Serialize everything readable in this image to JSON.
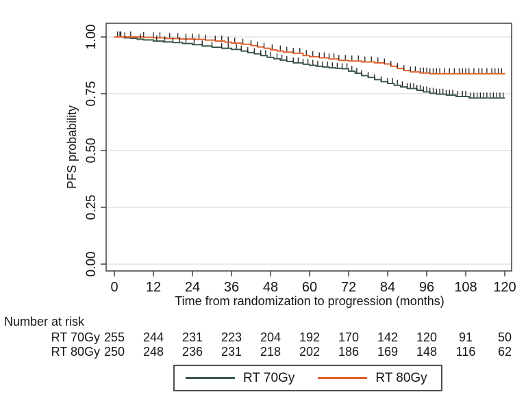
{
  "chart_data": {
    "type": "line",
    "chart_kind": "kaplan-meier-step",
    "title": "",
    "xlabel": "Time from randomization to progression (months)",
    "ylabel": "PFS probability",
    "xlim": [
      0,
      120
    ],
    "ylim": [
      0,
      1
    ],
    "xticks": [
      0,
      12,
      24,
      36,
      48,
      60,
      72,
      84,
      96,
      108,
      120
    ],
    "ytick_values": [
      1,
      0.75,
      0.5,
      0.25,
      0
    ],
    "ytick_labels": [
      "1.00",
      "0.75",
      "0.50",
      "0.25",
      "0.00"
    ],
    "grid": "horizontal",
    "legend_position": "bottom",
    "colors": {
      "rt70": "#3b5a49",
      "rt80": "#e2612c",
      "censor_tick": "#1e1e1e",
      "gridline": "#dcdcdc",
      "axis": "#3f3f3f",
      "text": "#161616"
    },
    "series": [
      {
        "name": "RT 70Gy",
        "color": "#3b5a49",
        "steps": [
          [
            0,
            1.0
          ],
          [
            3,
            0.996
          ],
          [
            5,
            0.994
          ],
          [
            7,
            0.99
          ],
          [
            9,
            0.987
          ],
          [
            12,
            0.982
          ],
          [
            15,
            0.978
          ],
          [
            18,
            0.975
          ],
          [
            21,
            0.971
          ],
          [
            24,
            0.966
          ],
          [
            27,
            0.96
          ],
          [
            30,
            0.955
          ],
          [
            33,
            0.95
          ],
          [
            36,
            0.945
          ],
          [
            39,
            0.938
          ],
          [
            41,
            0.931
          ],
          [
            43,
            0.926
          ],
          [
            45,
            0.918
          ],
          [
            47,
            0.91
          ],
          [
            49,
            0.904
          ],
          [
            51,
            0.898
          ],
          [
            53,
            0.892
          ],
          [
            55,
            0.886
          ],
          [
            58,
            0.88
          ],
          [
            60,
            0.875
          ],
          [
            62,
            0.871
          ],
          [
            64,
            0.868
          ],
          [
            66,
            0.864
          ],
          [
            68,
            0.862
          ],
          [
            70,
            0.86
          ],
          [
            72,
            0.849
          ],
          [
            74,
            0.84
          ],
          [
            76,
            0.83
          ],
          [
            78,
            0.822
          ],
          [
            80,
            0.812
          ],
          [
            82,
            0.803
          ],
          [
            84,
            0.795
          ],
          [
            86,
            0.787
          ],
          [
            88,
            0.78
          ],
          [
            90,
            0.773
          ],
          [
            93,
            0.765
          ],
          [
            95,
            0.758
          ],
          [
            97,
            0.752
          ],
          [
            99,
            0.748
          ],
          [
            102,
            0.744
          ],
          [
            105,
            0.738
          ],
          [
            109,
            0.731
          ],
          [
            120,
            0.731
          ]
        ],
        "censor_months": [
          1,
          1.7,
          3.2,
          8,
          13,
          15.5,
          18,
          20,
          22,
          24.5,
          27,
          30,
          33,
          35,
          37.5,
          39,
          41,
          43,
          45,
          46.5,
          48,
          50,
          51.5,
          53,
          55,
          56.5,
          58,
          59.5,
          61,
          62.5,
          64,
          65.5,
          67,
          68.5,
          70,
          71.5,
          73,
          74.5,
          76,
          78,
          80,
          82,
          84,
          85.5,
          87,
          88.5,
          90,
          91,
          92,
          93,
          94,
          95,
          96,
          97,
          98,
          99,
          100,
          101,
          102,
          103,
          104,
          105.5,
          107,
          108,
          109.5,
          110.5,
          111.5,
          112.5,
          113.5,
          114.5,
          115.5,
          116.5,
          117.5,
          118.5,
          119.5
        ]
      },
      {
        "name": "RT 80Gy",
        "color": "#e2612c",
        "steps": [
          [
            0,
            1.0
          ],
          [
            9,
            0.998
          ],
          [
            12,
            0.996
          ],
          [
            16,
            0.993
          ],
          [
            20,
            0.991
          ],
          [
            25,
            0.989
          ],
          [
            28,
            0.986
          ],
          [
            31,
            0.982
          ],
          [
            34,
            0.977
          ],
          [
            36,
            0.973
          ],
          [
            39,
            0.968
          ],
          [
            42,
            0.962
          ],
          [
            44,
            0.956
          ],
          [
            46,
            0.95
          ],
          [
            48,
            0.943
          ],
          [
            50,
            0.938
          ],
          [
            52,
            0.933
          ],
          [
            55,
            0.928
          ],
          [
            58,
            0.918
          ],
          [
            60,
            0.913
          ],
          [
            63,
            0.908
          ],
          [
            66,
            0.903
          ],
          [
            69,
            0.897
          ],
          [
            72,
            0.894
          ],
          [
            76,
            0.89
          ],
          [
            80,
            0.886
          ],
          [
            83,
            0.881
          ],
          [
            85,
            0.871
          ],
          [
            87,
            0.861
          ],
          [
            89,
            0.852
          ],
          [
            91,
            0.846
          ],
          [
            94,
            0.841
          ],
          [
            97,
            0.838
          ],
          [
            120,
            0.837
          ]
        ],
        "censor_months": [
          2,
          5,
          9,
          12,
          14,
          17,
          19.5,
          22,
          24,
          26,
          28,
          31,
          33,
          35,
          37,
          39.5,
          42,
          44,
          46,
          48.5,
          51,
          53,
          55,
          57,
          59,
          61,
          63,
          64.5,
          66,
          67.5,
          69,
          71,
          73,
          75,
          77,
          79,
          81,
          83,
          85,
          87,
          89,
          91,
          92.5,
          94,
          95,
          96,
          97,
          98,
          99,
          100,
          101.5,
          103,
          104.5,
          106,
          107,
          108,
          109,
          110.5,
          112,
          113,
          114.5,
          116,
          117,
          118,
          119
        ]
      }
    ],
    "risk_table": {
      "title": "Number at risk",
      "rows": [
        {
          "label": "RT 70Gy",
          "values": [
            255,
            244,
            231,
            223,
            204,
            192,
            170,
            142,
            120,
            91,
            50
          ]
        },
        {
          "label": "RT 80Gy",
          "values": [
            250,
            248,
            236,
            231,
            218,
            202,
            186,
            169,
            148,
            116,
            62
          ]
        }
      ]
    }
  }
}
